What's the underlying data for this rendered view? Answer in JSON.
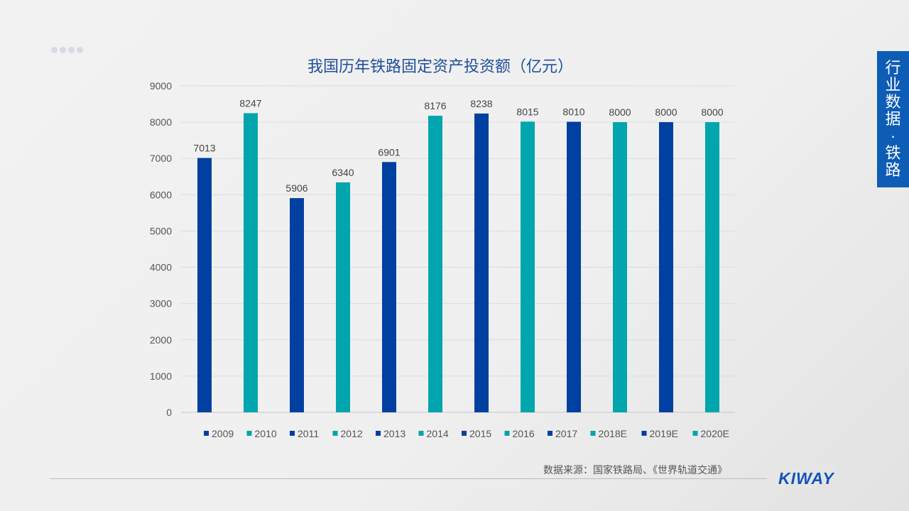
{
  "slide": {
    "side_label": "行业数据·铁路",
    "source": "数据来源：国家铁路局、《世界轨道交通》",
    "logo": "KIWAY"
  },
  "chart_data": {
    "type": "bar",
    "title": "我国历年铁路固定资产投资额（亿元）",
    "categories": [
      "2009",
      "2010",
      "2011",
      "2012",
      "2013",
      "2014",
      "2015",
      "2016",
      "2017",
      "2018E",
      "2019E",
      "2020E"
    ],
    "values": [
      7013,
      8247,
      5906,
      6340,
      6901,
      8176,
      8238,
      8015,
      8010,
      8000,
      8000,
      8000
    ],
    "colors": [
      "#0040a0",
      "#00a5ad",
      "#0040a0",
      "#00a5ad",
      "#0040a0",
      "#00a5ad",
      "#0040a0",
      "#00a5ad",
      "#0040a0",
      "#00a5ad",
      "#0040a0",
      "#00a5ad"
    ],
    "ylim": [
      0,
      9000
    ],
    "yticks": [
      0,
      1000,
      2000,
      3000,
      4000,
      5000,
      6000,
      7000,
      8000,
      9000
    ],
    "grid": true,
    "legend": "bottom",
    "data_labels": true
  }
}
